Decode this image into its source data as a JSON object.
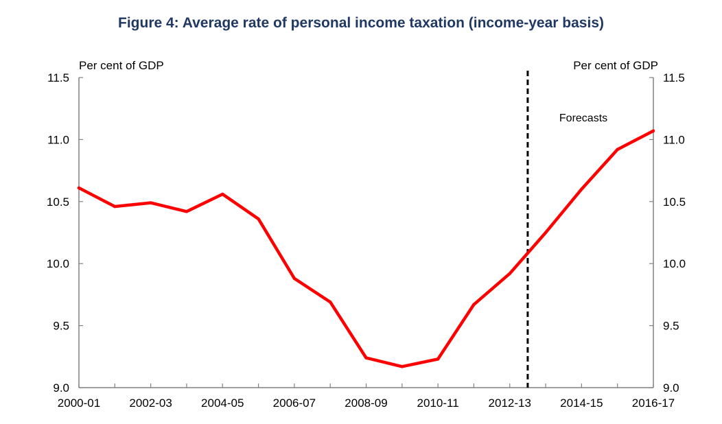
{
  "chart_data": {
    "type": "line",
    "title": "Figure 4: Average rate of personal income taxation (income-year basis)",
    "left_unit_label": "Per cent of GDP",
    "right_unit_label": "Per cent of GDP",
    "ylim": [
      9.0,
      11.5
    ],
    "y_ticks": [
      "9.0",
      "9.5",
      "10.0",
      "10.5",
      "11.0",
      "11.5"
    ],
    "x": [
      "2000-01",
      "2001-02",
      "2002-03",
      "2003-04",
      "2004-05",
      "2005-06",
      "2006-07",
      "2007-08",
      "2008-09",
      "2009-10",
      "2010-11",
      "2011-12",
      "2012-13",
      "2013-14",
      "2014-15",
      "2015-16",
      "2016-17"
    ],
    "x_tick_labels": [
      "2000-01",
      "2002-03",
      "2004-05",
      "2006-07",
      "2008-09",
      "2010-11",
      "2012-13",
      "2014-15",
      "2016-17"
    ],
    "series": [
      {
        "name": "Average rate of personal income taxation",
        "color": "#ff0000",
        "values": [
          10.61,
          10.46,
          10.49,
          10.42,
          10.56,
          10.36,
          9.88,
          9.69,
          9.24,
          9.17,
          9.23,
          9.67,
          9.92,
          10.25,
          10.6,
          10.92,
          11.07
        ]
      }
    ],
    "forecast_marker": {
      "x_position": 12.5,
      "label": "Forecasts"
    }
  }
}
